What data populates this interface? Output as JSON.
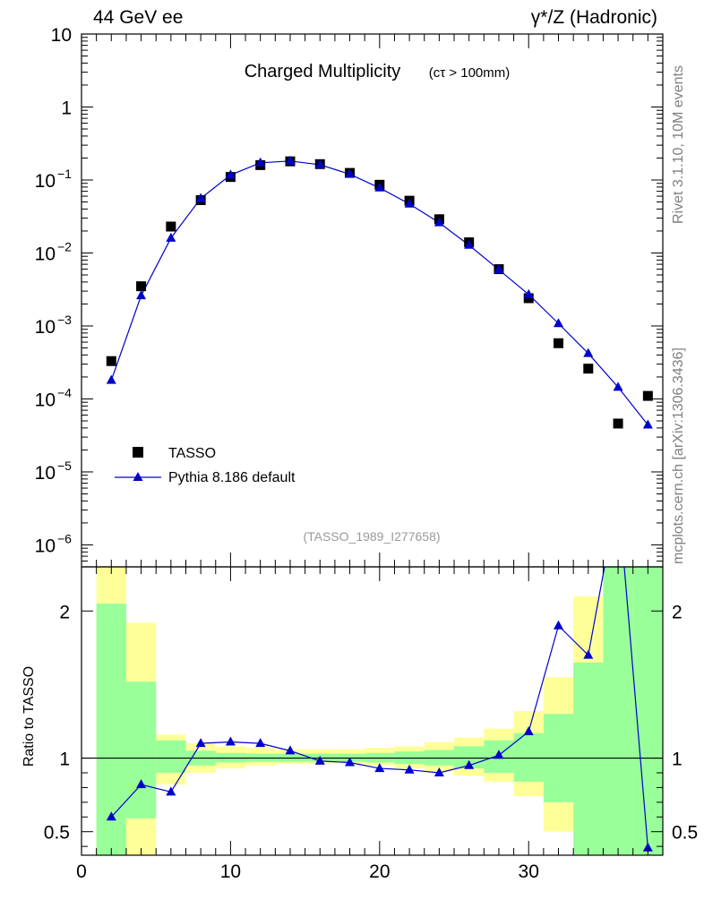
{
  "header": {
    "left": "44 GeV ee",
    "right": "γ*/Z (Hadronic)"
  },
  "side": {
    "rivet": "Rivet 3.1.10,  10M events",
    "mcplots": "mcplots.cern.ch [arXiv:1306.3436]"
  },
  "chart_data": [
    {
      "type": "scatter",
      "title": "Charged Multiplicity",
      "subtitle": "(cτ > 100mm)",
      "annotation": "(TASSO_1989_I277658)",
      "yscale": "log",
      "xlim": [
        0,
        39
      ],
      "ylim": [
        5e-07,
        10
      ],
      "yticks": [
        {
          "value": 10,
          "label": "10"
        },
        {
          "value": 1,
          "label": "1"
        },
        {
          "value": 0.1,
          "label": "10",
          "exp": "−1"
        },
        {
          "value": 0.01,
          "label": "10",
          "exp": "−2"
        },
        {
          "value": 0.001,
          "label": "10",
          "exp": "−3"
        },
        {
          "value": 0.0001,
          "label": "10",
          "exp": "−4"
        },
        {
          "value": 1e-05,
          "label": "10",
          "exp": "−5"
        },
        {
          "value": 1e-06,
          "label": "10",
          "exp": "−6"
        }
      ],
      "legend": [
        "TASSO",
        "Pythia 8.186 default"
      ],
      "legend_position": "bottom-left",
      "x": [
        2,
        4,
        6,
        8,
        10,
        12,
        14,
        16,
        18,
        20,
        22,
        24,
        26,
        28,
        30,
        32,
        34,
        36,
        38
      ],
      "series": [
        {
          "name": "TASSO",
          "marker": "square",
          "color": "#000000",
          "values": [
            0.00033,
            0.0035,
            0.023,
            0.053,
            0.11,
            0.16,
            0.18,
            0.165,
            0.125,
            0.086,
            0.052,
            0.029,
            0.014,
            0.006,
            0.0024,
            0.00058,
            0.00026,
            4.6e-05,
            0.00011
          ]
        },
        {
          "name": "Pythia 8.186 default",
          "marker": "triangle",
          "color": "#0000cc",
          "values": [
            0.00018,
            0.0026,
            0.016,
            0.056,
            0.117,
            0.172,
            0.182,
            0.162,
            0.12,
            0.078,
            0.047,
            0.026,
            0.0128,
            0.0059,
            0.0027,
            0.00108,
            0.00042,
            0.000145,
            4.4e-05
          ]
        }
      ]
    },
    {
      "type": "line",
      "ylabel": "Ratio to TASSO",
      "xlim": [
        0,
        39
      ],
      "ylim": [
        0.34,
        2.3
      ],
      "yticks": [
        {
          "value": 0.5,
          "label": "0.5"
        },
        {
          "value": 1,
          "label": "1"
        },
        {
          "value": 2,
          "label": "2"
        }
      ],
      "xticks": [
        {
          "value": 0,
          "label": "0"
        },
        {
          "value": 10,
          "label": "10"
        },
        {
          "value": 20,
          "label": "20"
        },
        {
          "value": 30,
          "label": "30"
        }
      ],
      "reference": 1,
      "bands": {
        "edges": [
          1,
          3,
          5,
          7,
          9,
          11,
          13,
          15,
          17,
          19,
          21,
          23,
          25,
          27,
          29,
          31,
          33,
          35,
          37,
          39
        ],
        "stat": {
          "color": "#99ff99",
          "lo": [
            0,
            0.59,
            0.9,
            0.95,
            0.97,
            0.975,
            0.975,
            0.975,
            0.975,
            0.97,
            0.96,
            0.95,
            0.93,
            0.9,
            0.84,
            0.7,
            0,
            0,
            0
          ],
          "hi": [
            2.05,
            1.52,
            1.12,
            1.05,
            1.035,
            1.03,
            1.03,
            1.03,
            1.03,
            1.035,
            1.045,
            1.055,
            1.08,
            1.12,
            1.17,
            1.3,
            1.65,
            2.3,
            2.3
          ]
        },
        "total": {
          "color": "#ffff99",
          "lo": [
            0,
            0,
            0.82,
            0.9,
            0.93,
            0.95,
            0.96,
            0.96,
            0.96,
            0.95,
            0.93,
            0.91,
            0.88,
            0.84,
            0.74,
            0.5,
            0,
            0,
            0
          ],
          "hi": [
            2.3,
            1.92,
            1.16,
            1.1,
            1.08,
            1.07,
            1.06,
            1.06,
            1.06,
            1.07,
            1.08,
            1.11,
            1.14,
            1.2,
            1.32,
            1.55,
            2.1,
            2.3,
            2.3
          ]
        }
      },
      "series": [
        {
          "name": "Pythia 8.186 default",
          "color": "#0000cc",
          "x": [
            2,
            4,
            6,
            8,
            10,
            12,
            14,
            16,
            18,
            20,
            22,
            24,
            26,
            28,
            30,
            32,
            34,
            36,
            38
          ],
          "values": [
            0.6,
            0.82,
            0.77,
            1.1,
            1.11,
            1.1,
            1.05,
            0.98,
            0.97,
            0.93,
            0.92,
            0.9,
            0.95,
            1.02,
            1.18,
            1.9,
            1.7,
            2.8,
            0.39
          ]
        }
      ]
    }
  ]
}
